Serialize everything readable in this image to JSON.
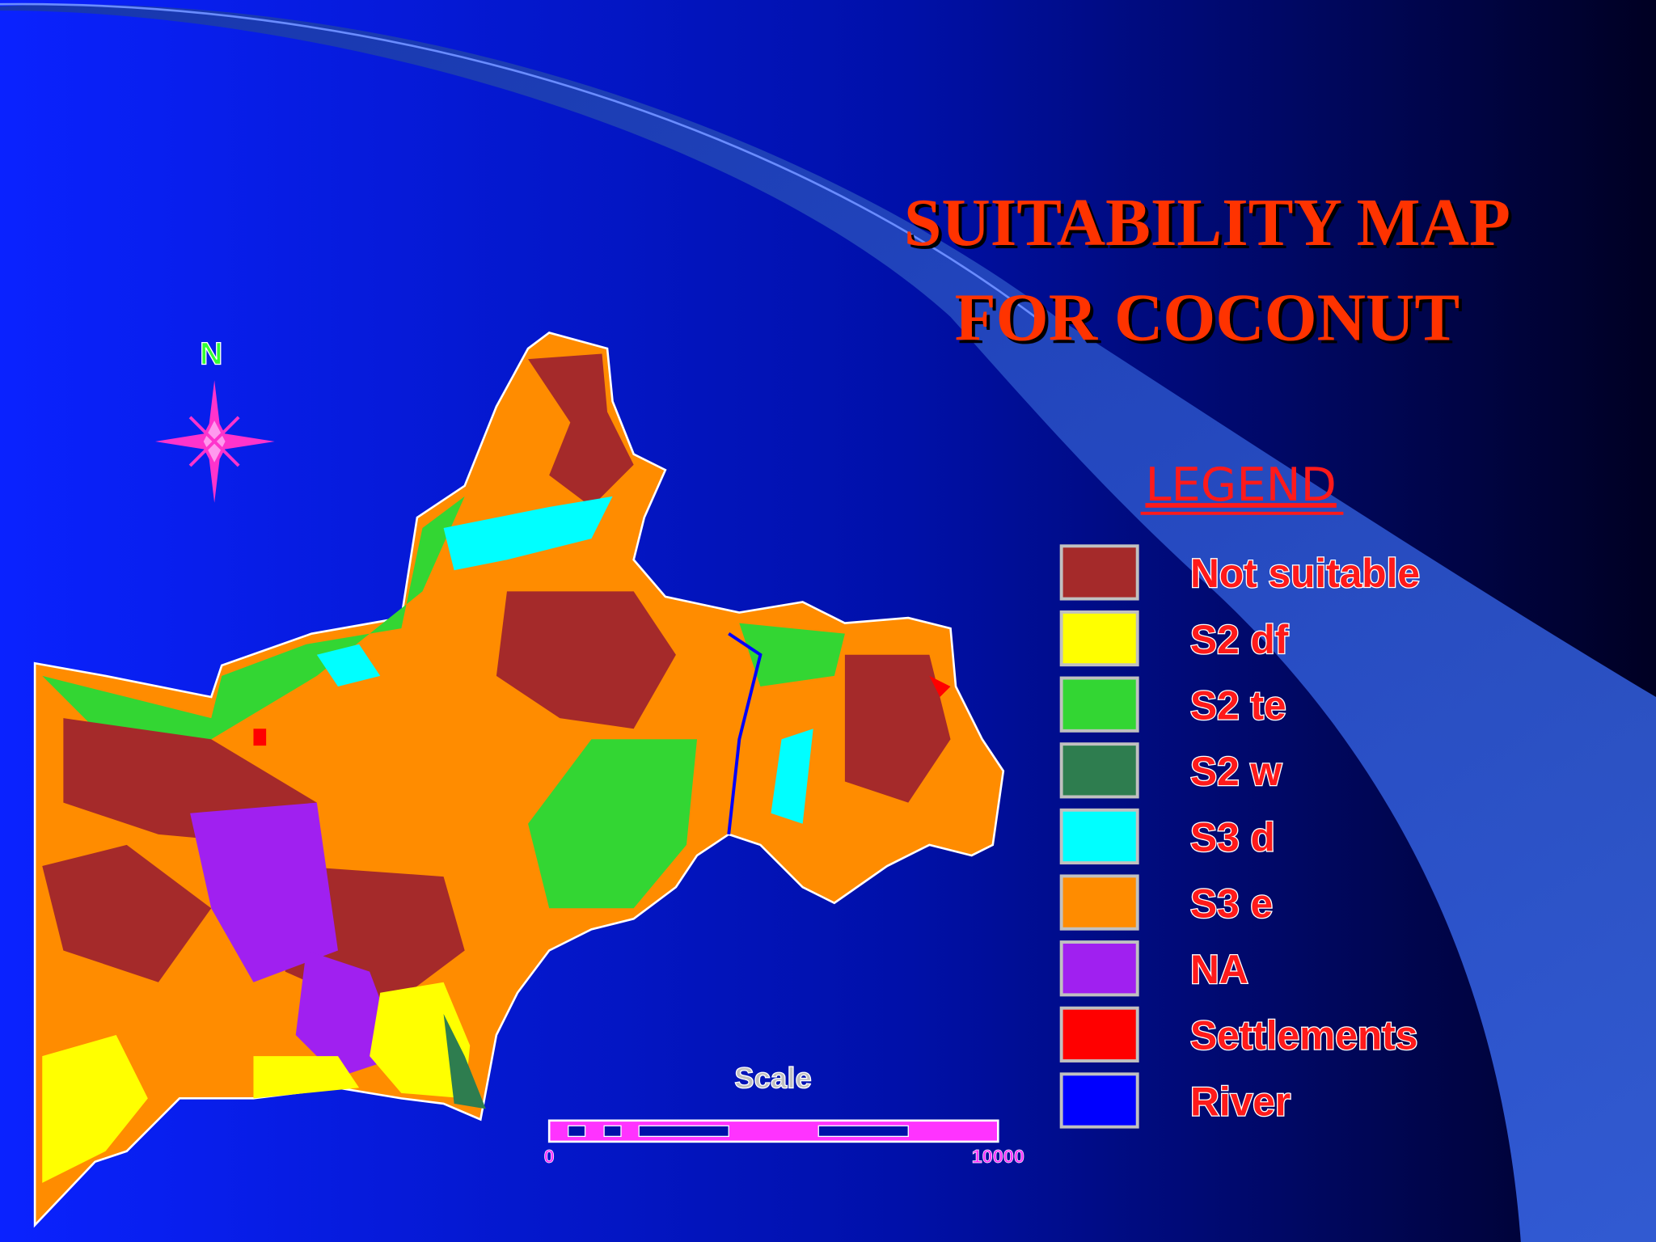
{
  "slide": {
    "title": [
      "SUITABILITY MAP",
      "FOR COCONUT"
    ],
    "north_label": "N",
    "legend": {
      "heading": "LEGEND",
      "items": [
        {
          "label": "Not suitable",
          "color": "#a52a2a"
        },
        {
          "label": "S2 df",
          "color": "#ffff00"
        },
        {
          "label": "S2 te",
          "color": "#33d633"
        },
        {
          "label": "S2 w",
          "color": "#2e7d4f"
        },
        {
          "label": "S3 d",
          "color": "#00ffff"
        },
        {
          "label": "S3 e",
          "color": "#ff8c00"
        },
        {
          "label": "NA",
          "color": "#a020f0"
        },
        {
          "label": "Settlements",
          "color": "#ff0000"
        },
        {
          "label": "River",
          "color": "#0000ff"
        }
      ]
    },
    "scale": {
      "label": "Scale",
      "start": "0",
      "end": "10000"
    }
  }
}
